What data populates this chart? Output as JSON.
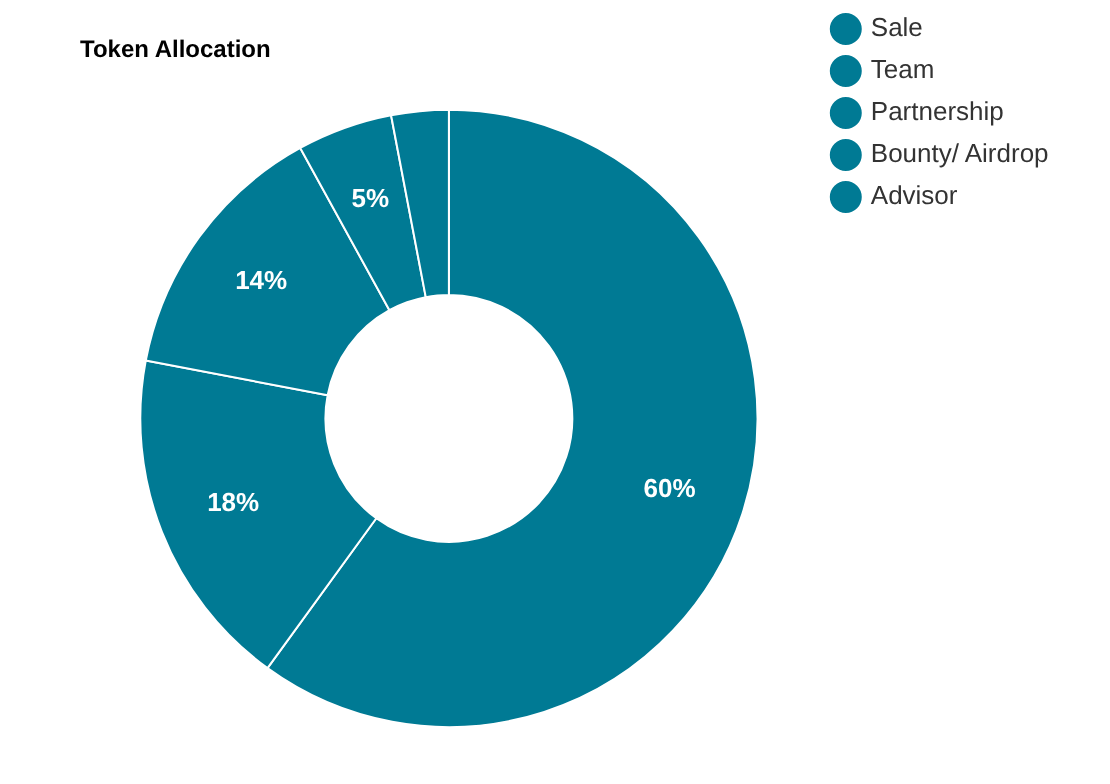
{
  "chart_data": {
    "type": "donut",
    "title": "Token Allocation",
    "categories": [
      "Sale",
      "Team",
      "Partnership",
      "Bounty/ Airdrop",
      "Advisor"
    ],
    "values": [
      60,
      18,
      14,
      5,
      3
    ],
    "colors": [
      "#007a94",
      "#007a94",
      "#007a94",
      "#007a94",
      "#007a94"
    ],
    "value_labels": [
      "60%",
      "18%",
      "14%",
      "5%",
      null
    ],
    "legend": "top right"
  }
}
